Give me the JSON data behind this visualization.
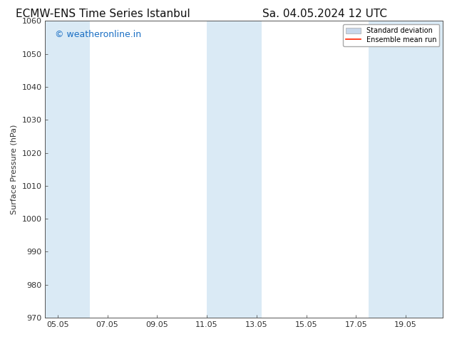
{
  "title_left": "ECMW-ENS Time Series Istanbul",
  "title_right": "Sa. 04.05.2024 12 UTC",
  "ylabel": "Surface Pressure (hPa)",
  "ylim": [
    970,
    1060
  ],
  "yticks": [
    970,
    980,
    990,
    1000,
    1010,
    1020,
    1030,
    1040,
    1050,
    1060
  ],
  "xlim_start": 4.5,
  "xlim_end": 20.5,
  "xtick_labels": [
    "05.05",
    "07.05",
    "09.05",
    "11.05",
    "13.05",
    "15.05",
    "17.05",
    "19.05"
  ],
  "xtick_positions": [
    5.0,
    7.0,
    9.0,
    11.0,
    13.0,
    15.0,
    17.0,
    19.0
  ],
  "shaded_bands": [
    {
      "x_start": 4.5,
      "x_end": 6.3
    },
    {
      "x_start": 11.0,
      "x_end": 13.2
    },
    {
      "x_start": 17.5,
      "x_end": 20.5
    }
  ],
  "band_color": "#daeaf5",
  "watermark_text": "© weatheronline.in",
  "watermark_color": "#1a6fc4",
  "legend_std_dev_color": "#c8d8eb",
  "legend_mean_run_color": "#ff2200",
  "background_color": "#ffffff",
  "title_fontsize": 11,
  "label_fontsize": 8,
  "tick_fontsize": 8,
  "watermark_fontsize": 9
}
